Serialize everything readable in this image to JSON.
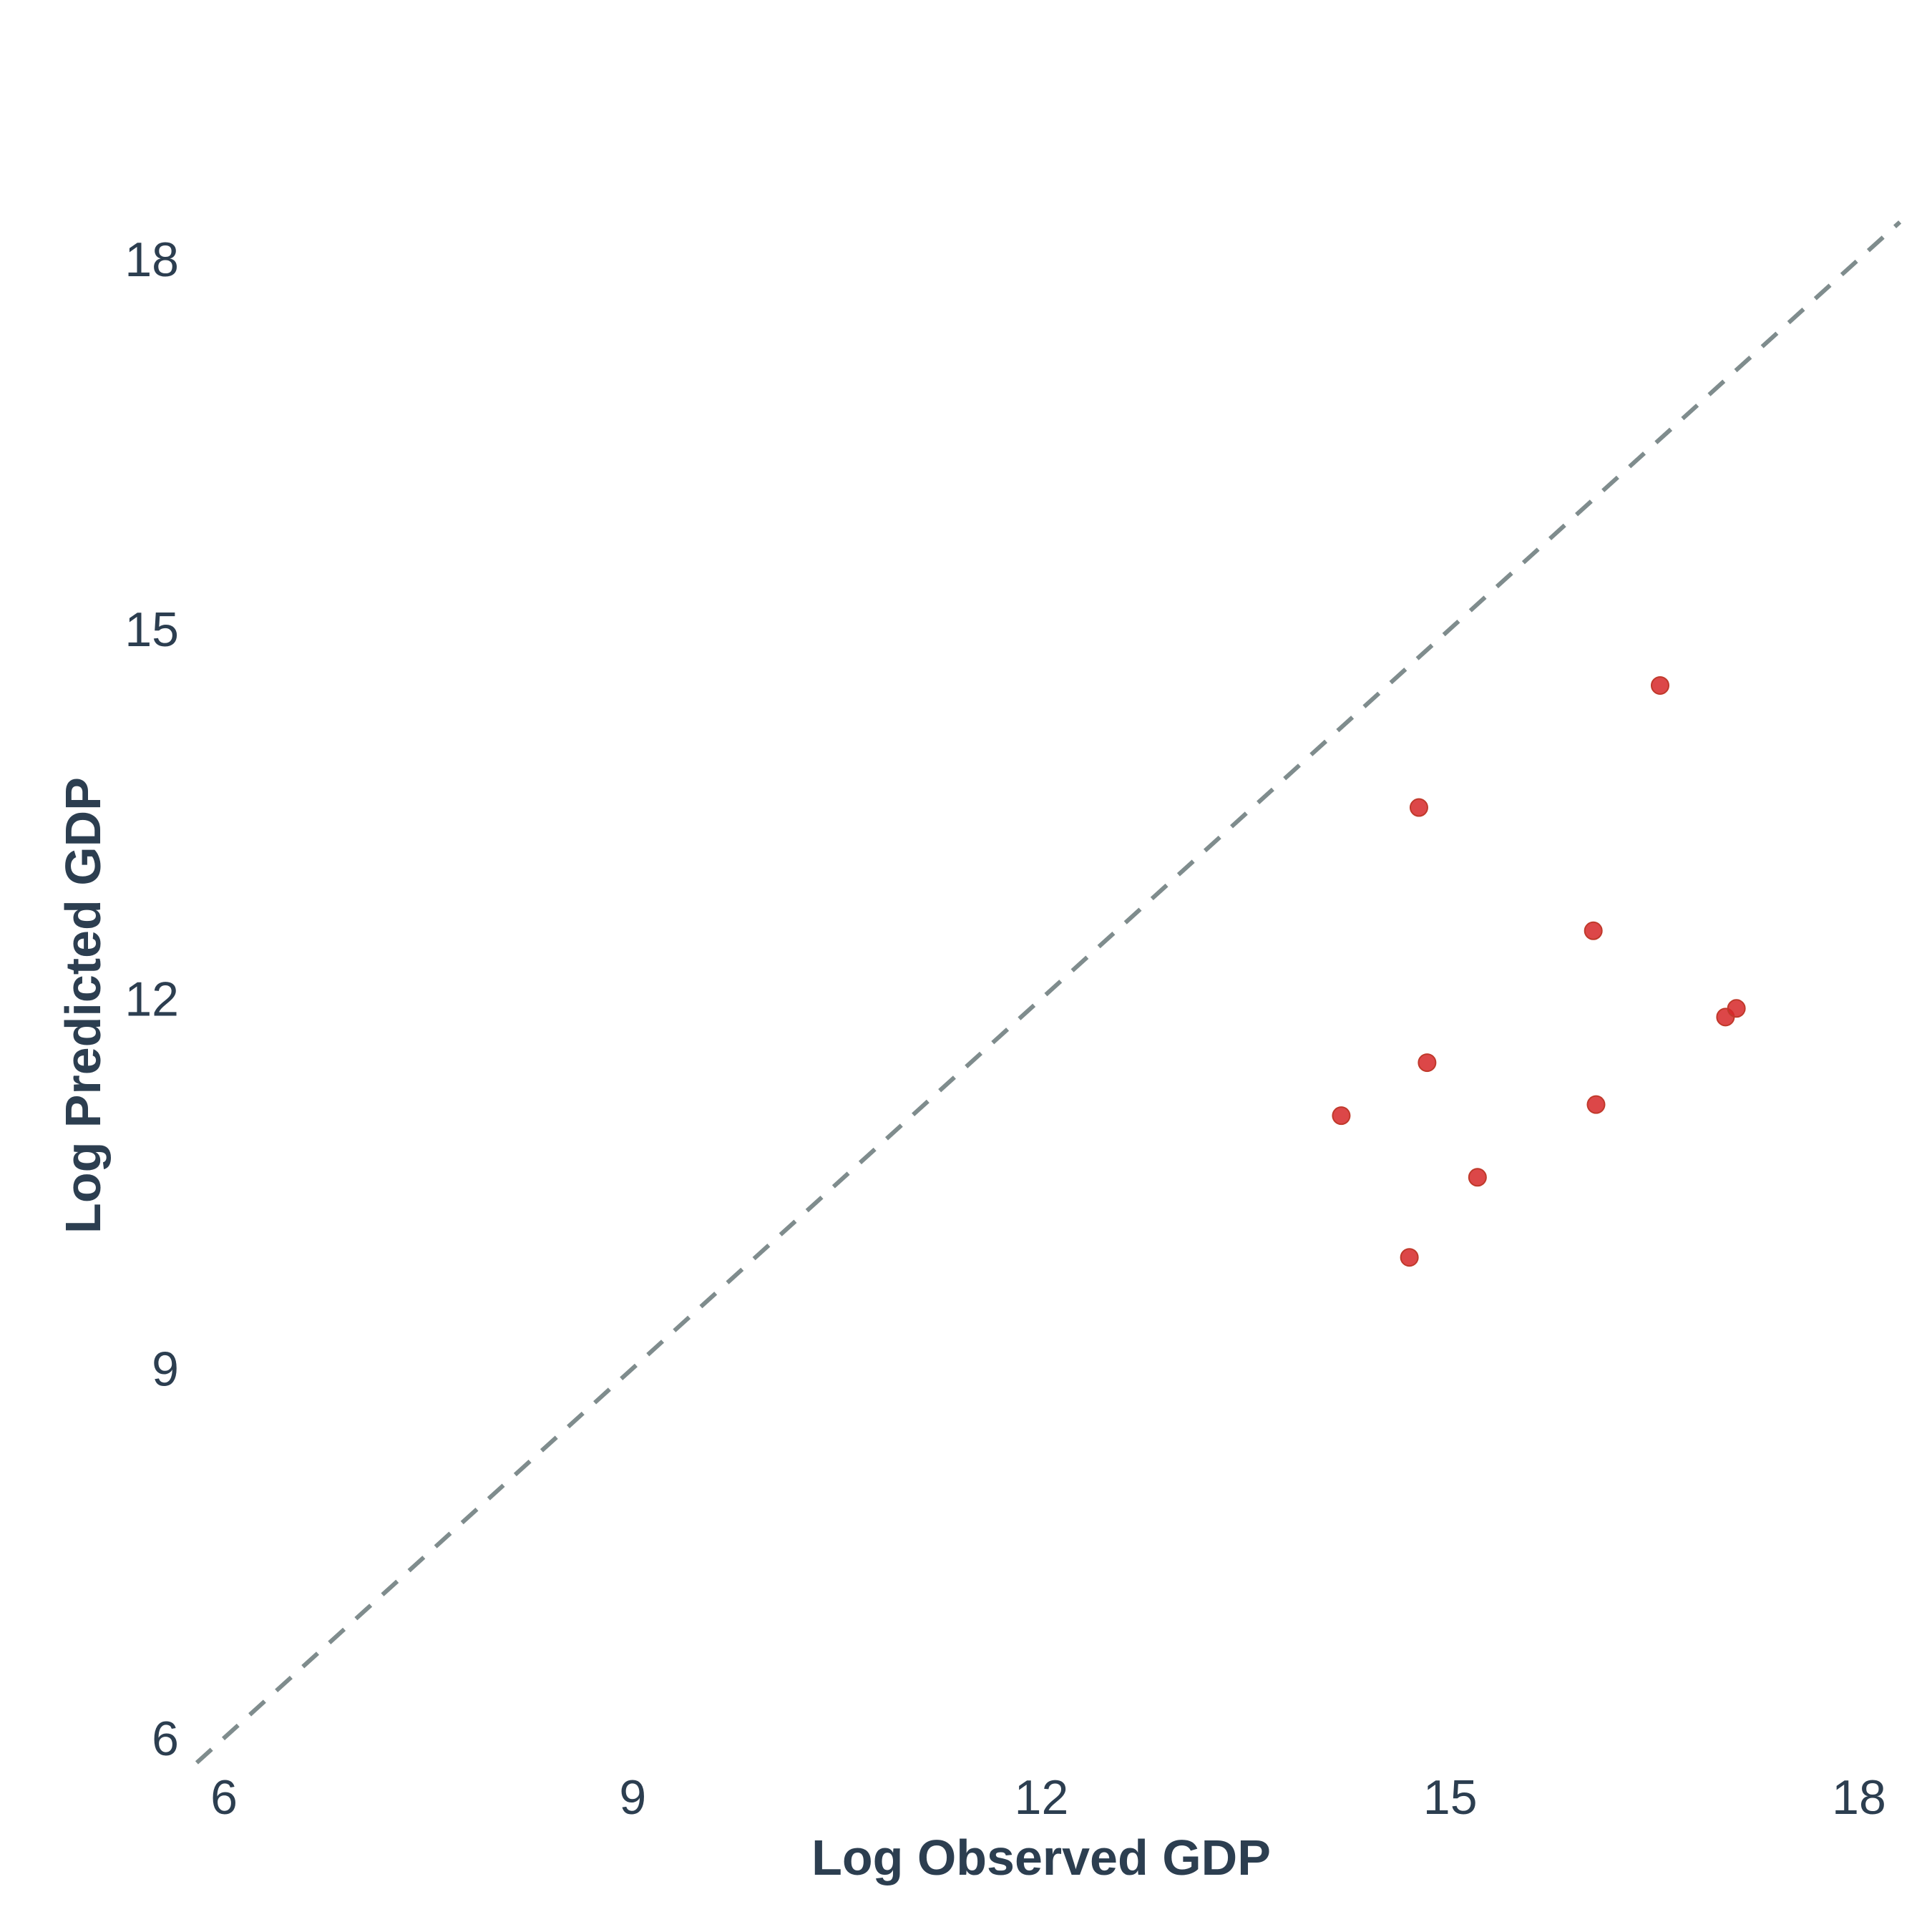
{
  "chart_data": {
    "type": "scatter",
    "title": "",
    "xlabel": "Log Observed GDP",
    "ylabel": "Log Predicted GDP",
    "xlim": [
      5.85,
      18.25
    ],
    "ylim": [
      5.85,
      19.0
    ],
    "x_ticks": [
      6,
      9,
      12,
      15,
      18
    ],
    "y_ticks": [
      6,
      9,
      12,
      15,
      18
    ],
    "grid": false,
    "reference_line": {
      "type": "identity",
      "style": "dashed",
      "color": "#7f8c8d"
    },
    "series": [
      {
        "color": "#d62728",
        "points": [
          {
            "x": 14.2,
            "y": 11.05
          },
          {
            "x": 14.7,
            "y": 9.9
          },
          {
            "x": 14.77,
            "y": 13.55
          },
          {
            "x": 14.83,
            "y": 11.48
          },
          {
            "x": 15.2,
            "y": 10.55
          },
          {
            "x": 16.05,
            "y": 12.55
          },
          {
            "x": 16.07,
            "y": 11.14
          },
          {
            "x": 16.54,
            "y": 14.54
          },
          {
            "x": 17.02,
            "y": 11.85
          },
          {
            "x": 17.1,
            "y": 11.92
          }
        ]
      }
    ]
  }
}
